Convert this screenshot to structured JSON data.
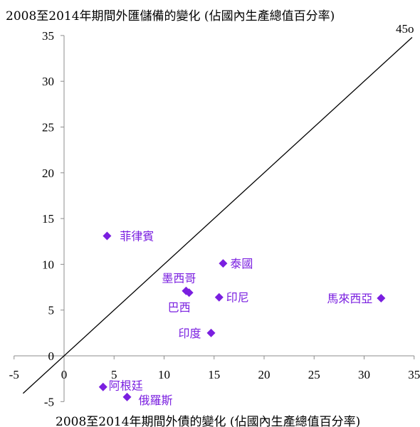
{
  "chart_data": {
    "type": "scatter",
    "title": "2008至2014年期間外匯儲備的變化 (佔國內生產總值百分率)",
    "xlabel": "2008至2014年期間外債的變化 (佔國內生產總值百分率)",
    "ylabel": "",
    "xlim": [
      -5,
      35
    ],
    "ylim": [
      -5,
      35
    ],
    "x_ticks": [
      "-5",
      "0",
      "5",
      "10",
      "15",
      "20",
      "25",
      "30",
      "35"
    ],
    "y_ticks": [
      "-5",
      "0",
      "5",
      "10",
      "15",
      "20",
      "25",
      "30",
      "35"
    ],
    "reference_line": {
      "label": "45o",
      "slope": 1,
      "intercept": 0
    },
    "marker_color": "#7a1fe0",
    "points": [
      {
        "name": "菲律賓",
        "x": 4.3,
        "y": 13.1
      },
      {
        "name": "泰國",
        "x": 15.9,
        "y": 10.1
      },
      {
        "name": "墨西哥",
        "x": 12.2,
        "y": 7.1
      },
      {
        "name": "巴西",
        "x": 12.5,
        "y": 6.9
      },
      {
        "name": "印尼",
        "x": 15.5,
        "y": 6.4
      },
      {
        "name": "馬來西亞",
        "x": 31.7,
        "y": 6.3
      },
      {
        "name": "印度",
        "x": 14.7,
        "y": 2.5
      },
      {
        "name": "阿根廷",
        "x": 3.9,
        "y": -3.4
      },
      {
        "name": "俄羅斯",
        "x": 6.3,
        "y": -4.5
      }
    ],
    "grid": false,
    "legend": "none"
  }
}
